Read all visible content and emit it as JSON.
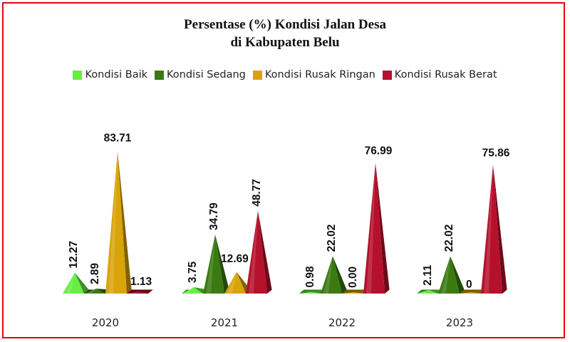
{
  "chart_data": {
    "type": "bar",
    "title": "Persentase (%) Kondisi Jalan Desa",
    "subtitle": "di Kabupaten Belu",
    "categories": [
      "2020",
      "2021",
      "2022",
      "2023"
    ],
    "series": [
      {
        "name": "Kondisi Baik",
        "color": "#66ee44",
        "values": [
          12.27,
          3.75,
          0.98,
          2.11
        ],
        "labels": [
          "12.27",
          "3.75",
          "0.98",
          "2.11"
        ]
      },
      {
        "name": "Kondisi Sedang",
        "color": "#3b7a10",
        "values": [
          2.89,
          34.79,
          22.02,
          22.02
        ],
        "labels": [
          "2.89",
          "34.79",
          "22.02",
          "22.02"
        ]
      },
      {
        "name": "Kondisi Rusak Ringan",
        "color": "#d9a40a",
        "values": [
          83.71,
          12.69,
          0.0,
          0
        ],
        "labels": [
          "83.71",
          "12.69",
          "0.00",
          "0"
        ]
      },
      {
        "name": "Kondisi Rusak Berat",
        "color": "#b5102c",
        "values": [
          1.13,
          48.77,
          76.99,
          75.86
        ],
        "labels": [
          "1.13",
          "48.77",
          "76.99",
          "75.86"
        ]
      }
    ],
    "ylim": [
      0,
      100
    ],
    "grid": false,
    "legend_position": "top"
  }
}
